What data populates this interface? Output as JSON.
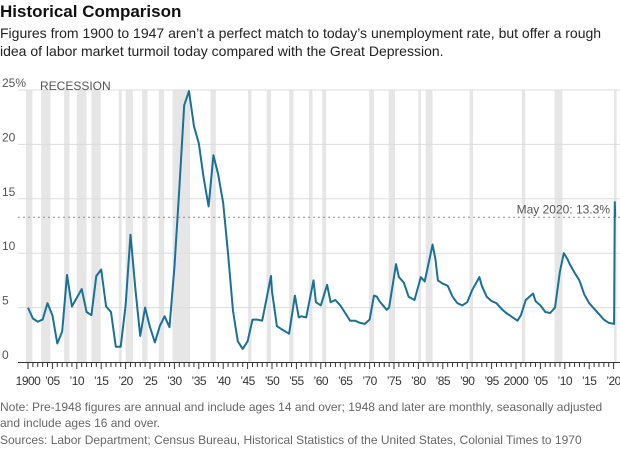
{
  "title": "Historical Comparison",
  "subtitle": "Figures from 1900 to 1947 aren’t a perfect match to today’s unemployment rate, but offer a rough idea of labor market turmoil today compared with the Great Depression.",
  "note": "Note: Pre-1948 figures are annual and include ages 14 and over; 1948 and later are monthly, seasonally adjusted and include ages 16 and over.",
  "sources": "Sources: Labor Department; Census Bureau, Historical Statistics of the United States, Colonial Times to 1970",
  "chart_data": {
    "type": "line",
    "title": "",
    "xlabel": "",
    "ylabel": "",
    "ylim": [
      0,
      25
    ],
    "xlim": [
      1898,
      2022
    ],
    "grid": true,
    "line_color": "#1a7196",
    "recession_color": "#e6e6e6",
    "recession_label": "RECESSION",
    "y_ticks": [
      {
        "v": 0,
        "label": "0"
      },
      {
        "v": 5,
        "label": "5"
      },
      {
        "v": 10,
        "label": "10"
      },
      {
        "v": 15,
        "label": "15"
      },
      {
        "v": 20,
        "label": "20"
      },
      {
        "v": 25,
        "label": "25%"
      }
    ],
    "x_ticks": [
      {
        "v": 1900,
        "label": "1900"
      },
      {
        "v": 1905,
        "label": "’05"
      },
      {
        "v": 1910,
        "label": "’10"
      },
      {
        "v": 1915,
        "label": "’15"
      },
      {
        "v": 1920,
        "label": "’20"
      },
      {
        "v": 1925,
        "label": "’25"
      },
      {
        "v": 1930,
        "label": "’30"
      },
      {
        "v": 1935,
        "label": "’35"
      },
      {
        "v": 1940,
        "label": "’40"
      },
      {
        "v": 1945,
        "label": "’45"
      },
      {
        "v": 1950,
        "label": "’50"
      },
      {
        "v": 1955,
        "label": "’55"
      },
      {
        "v": 1960,
        "label": "’60"
      },
      {
        "v": 1965,
        "label": "’65"
      },
      {
        "v": 1970,
        "label": "’70"
      },
      {
        "v": 1975,
        "label": "’75"
      },
      {
        "v": 1980,
        "label": "’80"
      },
      {
        "v": 1985,
        "label": "’85"
      },
      {
        "v": 1990,
        "label": "’90"
      },
      {
        "v": 1995,
        "label": "’95"
      },
      {
        "v": 2000,
        "label": "2000"
      },
      {
        "v": 2005,
        "label": "’05"
      },
      {
        "v": 2010,
        "label": "’10"
      },
      {
        "v": 2015,
        "label": "’15"
      },
      {
        "v": 2020,
        "label": "’20"
      }
    ],
    "reference_line": {
      "value": 13.3,
      "label": "May 2020: 13.3%"
    },
    "recessions": [
      [
        1899.6,
        1900.9
      ],
      [
        1902.7,
        1904.6
      ],
      [
        1907.4,
        1908.5
      ],
      [
        1910.0,
        1912.0
      ],
      [
        1913.0,
        1914.9
      ],
      [
        1918.6,
        1919.2
      ],
      [
        1920.0,
        1921.5
      ],
      [
        1923.4,
        1924.5
      ],
      [
        1926.8,
        1927.9
      ],
      [
        1929.6,
        1933.2
      ],
      [
        1937.4,
        1938.5
      ],
      [
        1945.1,
        1945.8
      ],
      [
        1948.9,
        1949.8
      ],
      [
        1953.5,
        1954.4
      ],
      [
        1957.6,
        1958.3
      ],
      [
        1960.3,
        1961.1
      ],
      [
        1969.9,
        1970.9
      ],
      [
        1973.9,
        1975.2
      ],
      [
        1980.0,
        1980.5
      ],
      [
        1981.5,
        1982.9
      ],
      [
        1990.5,
        1991.2
      ],
      [
        2001.2,
        2001.9
      ],
      [
        2007.9,
        2009.5
      ],
      [
        2020.1,
        2020.4
      ]
    ],
    "series": [
      {
        "x": [
          1900,
          1901,
          1902,
          1903,
          1904,
          1905,
          1906,
          1907,
          1908,
          1909,
          1910,
          1911,
          1912,
          1913,
          1914,
          1915,
          1916,
          1917,
          1918,
          1919,
          1920,
          1921,
          1922,
          1923,
          1924,
          1925,
          1926,
          1927,
          1928,
          1929,
          1930,
          1931,
          1932,
          1933,
          1934,
          1935,
          1936,
          1937,
          1938,
          1939,
          1940,
          1941,
          1942,
          1943,
          1944,
          1945,
          1946,
          1947,
          1948,
          1949.8,
          1950,
          1951,
          1952,
          1953.5,
          1954.7,
          1955.5,
          1956,
          1957,
          1958.5,
          1959,
          1960,
          1961.3,
          1962,
          1963,
          1964,
          1965,
          1966,
          1967,
          1968,
          1969,
          1970,
          1970.9,
          1971.5,
          1972,
          1973.5,
          1974,
          1975.4,
          1976,
          1977,
          1978,
          1979.2,
          1980.5,
          1981.3,
          1982.9,
          1983.5,
          1984,
          1985,
          1986,
          1987,
          1988,
          1989,
          1990,
          1991,
          1992.5,
          1993,
          1994,
          1995,
          1996,
          1997,
          1998,
          1999,
          2000.3,
          2001,
          2002,
          2003.5,
          2004,
          2005,
          2006,
          2007,
          2008,
          2009,
          2009.8,
          2010.5,
          2011,
          2012,
          2013,
          2014,
          2015,
          2016,
          2017,
          2018,
          2019,
          2020.1,
          2020.25,
          2020.33
        ],
        "y": [
          5.0,
          4.0,
          3.7,
          3.9,
          5.4,
          4.3,
          1.7,
          2.8,
          8.0,
          5.1,
          5.9,
          6.7,
          4.6,
          4.3,
          7.9,
          8.5,
          5.1,
          4.6,
          1.4,
          1.4,
          5.2,
          11.7,
          6.7,
          2.4,
          5.0,
          3.2,
          1.8,
          3.3,
          4.2,
          3.2,
          8.7,
          15.9,
          23.6,
          24.9,
          21.7,
          20.1,
          16.9,
          14.3,
          19.0,
          17.2,
          14.6,
          9.9,
          4.7,
          1.9,
          1.2,
          1.9,
          3.9,
          3.9,
          3.8,
          7.9,
          6.5,
          3.3,
          3.0,
          2.6,
          6.1,
          4.1,
          4.2,
          4.1,
          7.5,
          5.5,
          5.2,
          7.1,
          5.5,
          5.7,
          5.2,
          4.5,
          3.8,
          3.8,
          3.6,
          3.5,
          3.9,
          6.1,
          6.0,
          5.6,
          4.8,
          5.0,
          9.0,
          7.8,
          7.3,
          6.0,
          5.7,
          7.8,
          7.4,
          10.8,
          9.4,
          7.5,
          7.2,
          7.0,
          6.0,
          5.4,
          5.2,
          5.5,
          6.6,
          7.8,
          7.0,
          6.0,
          5.6,
          5.4,
          4.9,
          4.5,
          4.2,
          3.8,
          4.3,
          5.7,
          6.3,
          5.6,
          5.2,
          4.6,
          4.5,
          5.0,
          8.3,
          10.0,
          9.5,
          9.0,
          8.2,
          7.5,
          6.2,
          5.4,
          4.9,
          4.4,
          3.9,
          3.6,
          3.5,
          14.7,
          13.3
        ]
      }
    ]
  }
}
